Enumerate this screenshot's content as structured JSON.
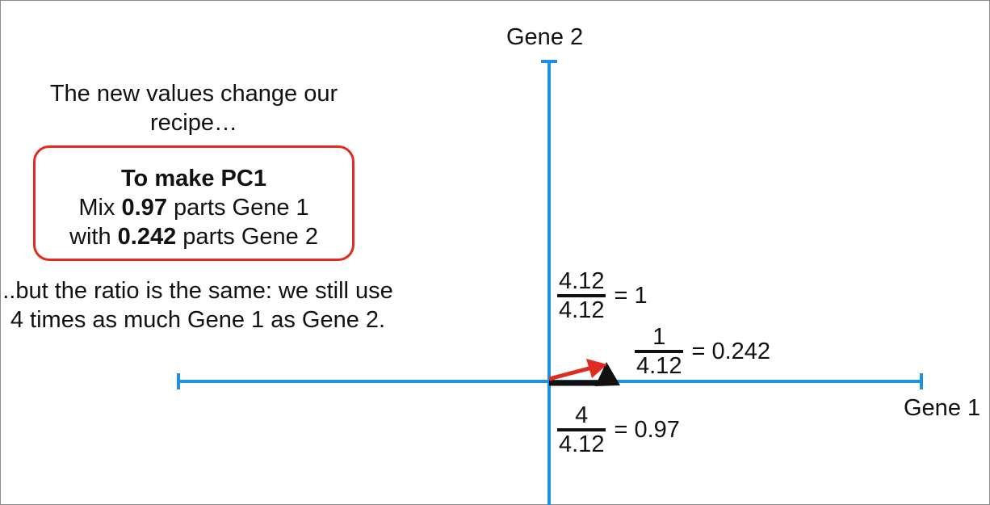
{
  "intro_text": "The new values change our recipe…",
  "recipe": {
    "title": "To make PC1",
    "line1_prefix": "Mix ",
    "line1_value": "0.97",
    "line1_suffix": " parts Gene 1",
    "line2_prefix": "with ",
    "line2_value": "0.242",
    "line2_suffix": " parts Gene 2"
  },
  "ratio_text": "..but the ratio is the same: we still use 4 times as much Gene 1 as Gene 2.",
  "axes": {
    "y_label": "Gene 2",
    "x_label": "Gene 1"
  },
  "fractions": {
    "top": {
      "numerator": "4.12",
      "denominator": "4.12",
      "result": "= 1"
    },
    "right": {
      "numerator": "1",
      "denominator": "4.12",
      "result": "= 0.242"
    },
    "bottom": {
      "numerator": "4",
      "denominator": "4.12",
      "result": "= 0.97"
    }
  },
  "colors": {
    "axis": "#1e90e8",
    "recipe_border": "#e02b20",
    "new_vector": "#e02b20",
    "original_vector": "#111111"
  }
}
